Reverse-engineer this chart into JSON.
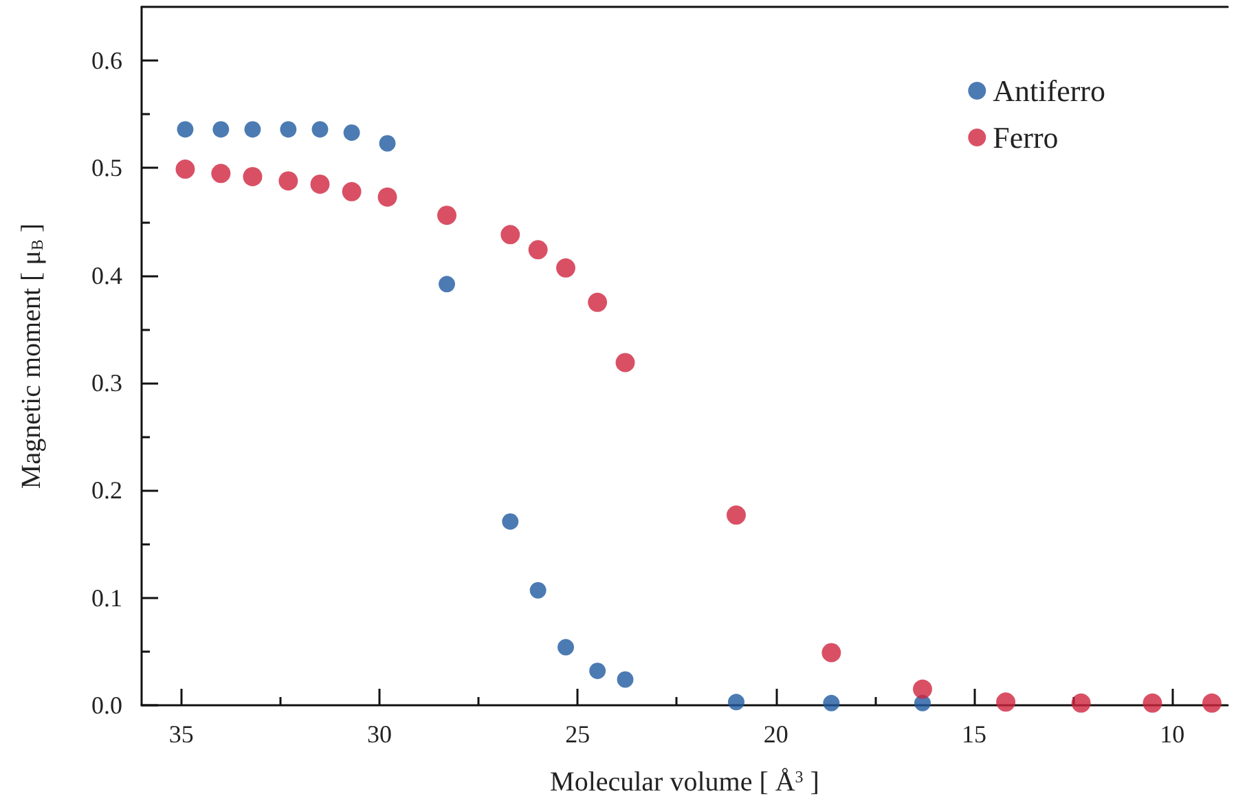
{
  "chart_data": {
    "type": "scatter",
    "xlabel": "Molecular volume [ Å$^{3}$ ]",
    "ylabel": "Magnetic moment [ μ$_{B}$ ]",
    "xlim": [
      36,
      8.6
    ],
    "xticks": [
      35,
      30,
      25,
      20,
      15,
      10
    ],
    "ylim": [
      0,
      0.65
    ],
    "yticks": [
      {
        "value": 0,
        "label": "0.0"
      },
      {
        "value": 0.1,
        "label": "0.1"
      },
      {
        "value": 0.2,
        "label": "0.2"
      },
      {
        "value": 0.3,
        "label": "0.3"
      },
      {
        "value": 0.4,
        "label": "0.4"
      },
      {
        "value": 0.5,
        "label": "0.5"
      },
      {
        "value": 0.6,
        "label": "0.6"
      }
    ],
    "legend": "top right",
    "marker": "circle",
    "grid": false,
    "series": [
      {
        "name": "Antiferro",
        "color": "#1f5aa0",
        "x": [
          34.9,
          34.0,
          33.2,
          32.3,
          31.5,
          30.7,
          29.8,
          28.3,
          26.7,
          26.0,
          25.3,
          24.5,
          23.8,
          21.0,
          18.6,
          16.3
        ],
        "values": [
          0.536,
          0.536,
          0.536,
          0.536,
          0.536,
          0.533,
          0.523,
          0.392,
          0.171,
          0.107,
          0.054,
          0.032,
          0.024,
          0.003,
          0.002,
          0.002
        ]
      },
      {
        "name": "Ferro",
        "color": "#d0243f",
        "x": [
          34.9,
          34.0,
          33.2,
          32.3,
          31.5,
          30.7,
          29.8,
          28.3,
          26.7,
          26.0,
          25.3,
          24.5,
          23.8,
          21.0,
          18.6,
          16.3,
          14.2,
          12.3,
          10.5,
          9.0
        ],
        "values": [
          0.499,
          0.495,
          0.492,
          0.488,
          0.485,
          0.478,
          0.473,
          0.456,
          0.438,
          0.424,
          0.407,
          0.375,
          0.319,
          0.177,
          0.049,
          0.015,
          0.003,
          0.002,
          0.002,
          0.002
        ]
      }
    ]
  }
}
